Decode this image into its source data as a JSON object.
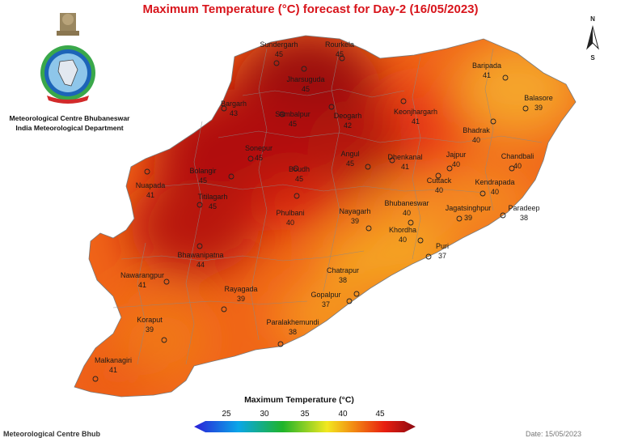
{
  "title": "Maximum Temperature (°C) forecast for Day-2 (16/05/2023)",
  "organization": {
    "line1": "Meteorological Centre Bhubaneswar",
    "line2": "India Meteorological Department"
  },
  "north_arrow": {
    "n": "N",
    "s": "S"
  },
  "legend": {
    "title": "Maximum Temperature (°C)",
    "ticks": [
      "25",
      "30",
      "35",
      "40",
      "45"
    ],
    "colors": [
      "#2a1fd8",
      "#0aa6e8",
      "#1fb42a",
      "#f2e820",
      "#f28a12",
      "#e81e10",
      "#8c0a12"
    ]
  },
  "footer": {
    "left": "Meteorological Centre Bhub",
    "right": "Date: 15/05/2023"
  },
  "stations": [
    {
      "name": "Sundergarh",
      "temp": "45"
    },
    {
      "name": "Rourkela",
      "temp": "45"
    },
    {
      "name": "Jharsuguda",
      "temp": "45"
    },
    {
      "name": "Baripada",
      "temp": "41"
    },
    {
      "name": "Balasore",
      "temp": "39"
    },
    {
      "name": "Bargarh",
      "temp": "43"
    },
    {
      "name": "Sambalpur",
      "temp": "45"
    },
    {
      "name": "Deogarh",
      "temp": "42"
    },
    {
      "name": "Keonjhargarh",
      "temp": "41"
    },
    {
      "name": "Bhadrak",
      "temp": "40"
    },
    {
      "name": "Chandbali",
      "temp": "40"
    },
    {
      "name": "Sonepur",
      "temp": "45"
    },
    {
      "name": "Angul",
      "temp": "45"
    },
    {
      "name": "Dhenkanal",
      "temp": "41"
    },
    {
      "name": "Jajpur",
      "temp": "40"
    },
    {
      "name": "Bolangir",
      "temp": "45"
    },
    {
      "name": "Boudh",
      "temp": "45"
    },
    {
      "name": "Cuttack",
      "temp": "40"
    },
    {
      "name": "Kendrapada",
      "temp": "40"
    },
    {
      "name": "Nuapada",
      "temp": "41"
    },
    {
      "name": "Titilagarh",
      "temp": "45"
    },
    {
      "name": "Phulbani",
      "temp": "40"
    },
    {
      "name": "Nayagarh",
      "temp": "39"
    },
    {
      "name": "Bhubaneswar",
      "temp": "40"
    },
    {
      "name": "Jagatsinghpur",
      "temp": "39"
    },
    {
      "name": "Paradeep",
      "temp": "38"
    },
    {
      "name": "Khordha",
      "temp": "40"
    },
    {
      "name": "Bhawanipatna",
      "temp": "44"
    },
    {
      "name": "Puri",
      "temp": "37"
    },
    {
      "name": "Nawarangpur",
      "temp": "41"
    },
    {
      "name": "Chatrapur",
      "temp": "38"
    },
    {
      "name": "Rayagada",
      "temp": "39"
    },
    {
      "name": "Gopalpur",
      "temp": "37"
    },
    {
      "name": "Koraput",
      "temp": "39"
    },
    {
      "name": "Paralakhemundi",
      "temp": "38"
    },
    {
      "name": "Malkanagiri",
      "temp": "41"
    }
  ]
}
